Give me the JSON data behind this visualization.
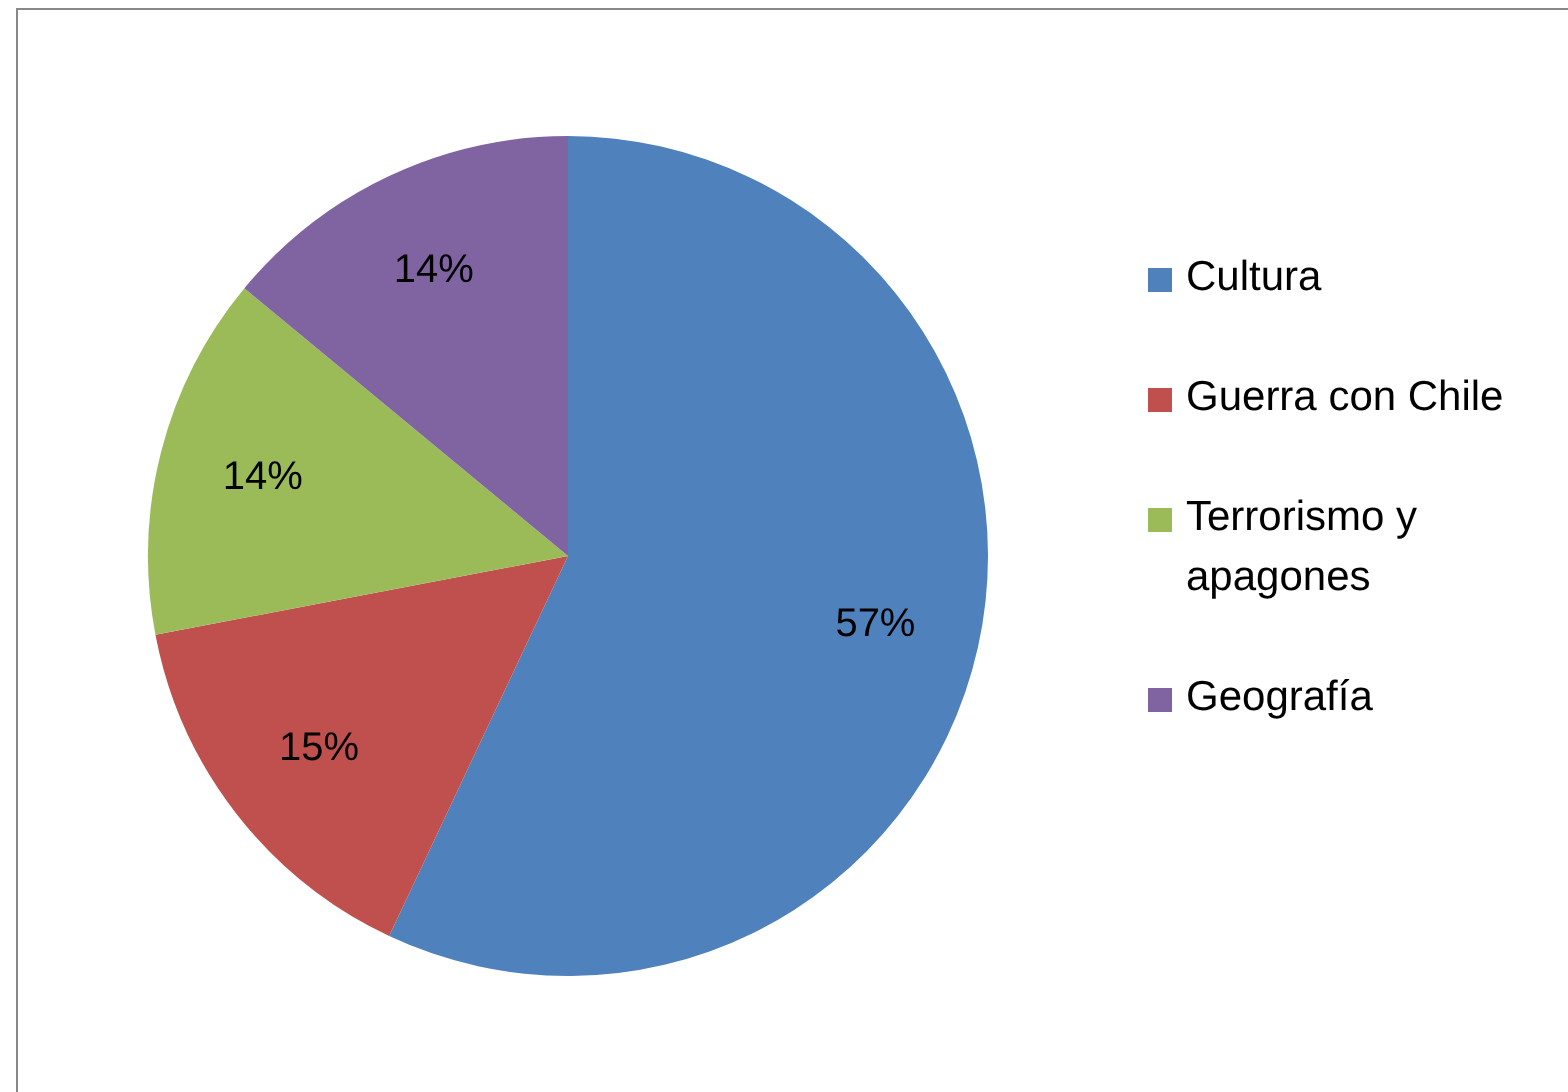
{
  "chart_data": {
    "type": "pie",
    "categories": [
      "Cultura",
      "Guerra con Chile",
      "Terrorismo y apagones",
      "Geografía"
    ],
    "values": [
      57,
      15,
      14,
      14
    ],
    "colors": [
      "#4f81bd",
      "#c0504d",
      "#9bbb59",
      "#8064a2"
    ],
    "value_labels": [
      "57%",
      "15%",
      "14%",
      "14%"
    ],
    "legend": "right"
  }
}
